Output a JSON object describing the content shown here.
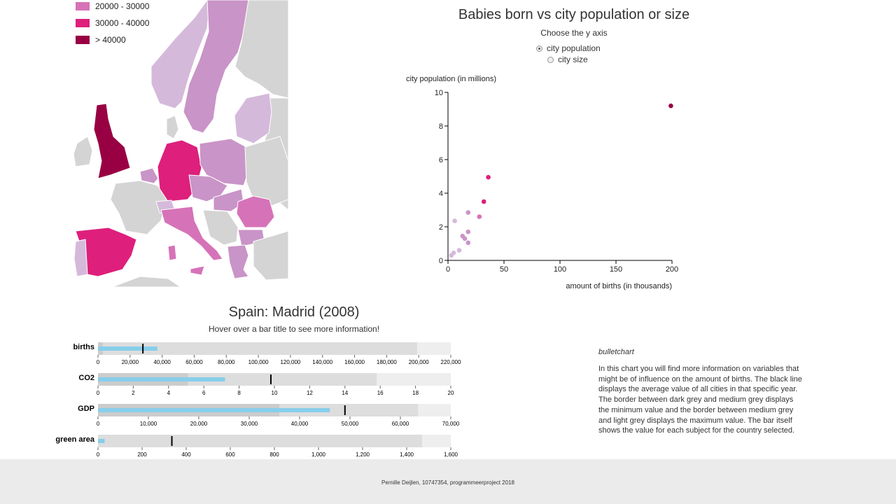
{
  "map_legend": [
    {
      "label": "20000 - 30000",
      "color": "#d672b8"
    },
    {
      "label": "30000 - 40000",
      "color": "#de1f7c"
    },
    {
      "label": "> 40000",
      "color": "#980043"
    }
  ],
  "map_colors": {
    "none": "#d4d4d4",
    "light": "#d5b9db",
    "lightmid": "#c994c7",
    "mid": "#d672b8",
    "high": "#de1f7c",
    "top": "#980043"
  },
  "scatter": {
    "title": "Babies born vs city population or size",
    "subtitle": "Choose the y axis",
    "options": [
      {
        "label": "city population",
        "selected": true
      },
      {
        "label": "city size",
        "selected": false
      }
    ]
  },
  "chart_data": [
    {
      "type": "scatter",
      "title": "Babies born vs city population or size",
      "xlabel": "amount of births (in thousands)",
      "ylabel": "city population (in millions)",
      "xlim": [
        0,
        200
      ],
      "ylim": [
        0,
        10
      ],
      "xticks": [
        "0",
        "50",
        "100",
        "150",
        "200"
      ],
      "yticks": [
        "0",
        "2",
        "4",
        "6",
        "8",
        "10"
      ],
      "points": [
        {
          "x": 199,
          "y": 9.2,
          "color": "#980043"
        },
        {
          "x": 36,
          "y": 4.95,
          "color": "#de1f7c"
        },
        {
          "x": 32,
          "y": 3.5,
          "color": "#de1f7c"
        },
        {
          "x": 28,
          "y": 2.6,
          "color": "#d672b8"
        },
        {
          "x": 18,
          "y": 2.85,
          "color": "#c994c7"
        },
        {
          "x": 6,
          "y": 2.35,
          "color": "#d5b9db"
        },
        {
          "x": 18,
          "y": 1.7,
          "color": "#c994c7"
        },
        {
          "x": 13,
          "y": 1.45,
          "color": "#c994c7"
        },
        {
          "x": 15,
          "y": 1.3,
          "color": "#c994c7"
        },
        {
          "x": 18,
          "y": 1.05,
          "color": "#c994c7"
        },
        {
          "x": 10,
          "y": 0.6,
          "color": "#d5b9db"
        },
        {
          "x": 5,
          "y": 0.45,
          "color": "#d5b9db"
        },
        {
          "x": 3,
          "y": 0.3,
          "color": "#d5b9db"
        }
      ]
    },
    {
      "type": "bullet",
      "title": "Spain: Madrid (2008)",
      "subtitle": "Hover over a bar title to see more information!",
      "rows": [
        {
          "label": "births",
          "max_scale": 220000,
          "ticks": [
            "0",
            "20,000",
            "40,000",
            "60,000",
            "80,000",
            "100,000",
            "120,000",
            "140,000",
            "160,000",
            "180,000",
            "200,000",
            "220,000"
          ],
          "range_min": 3000,
          "range_max": 199000,
          "value": 37000,
          "marker": 28000
        },
        {
          "label": "CO2",
          "max_scale": 20,
          "ticks": [
            "0",
            "2",
            "4",
            "6",
            "8",
            "10",
            "12",
            "14",
            "16",
            "18",
            "20"
          ],
          "range_min": 5.1,
          "range_max": 15.8,
          "value": 7.2,
          "marker": 9.8
        },
        {
          "label": "GDP",
          "max_scale": 70000,
          "ticks": [
            "0",
            "10,000",
            "20,000",
            "30,000",
            "40,000",
            "50,000",
            "60,000",
            "70,000"
          ],
          "range_min": 36000,
          "range_max": 63500,
          "value": 46000,
          "marker": 49000
        },
        {
          "label": "green area",
          "max_scale": 1600,
          "ticks": [
            "0",
            "200",
            "400",
            "600",
            "800",
            "1,000",
            "1,200",
            "1,400",
            "1,600"
          ],
          "range_min": 0,
          "range_max": 1470,
          "value": 30,
          "marker": 335
        }
      ]
    }
  ],
  "description": {
    "title": "bulletchart",
    "text": "In this chart you will find more information on variables that might be of influence on the amount of births. The black line displays the average value of all cities in that specific year. The border between dark grey and medium grey displays the minimum value and the border between medium grey and light grey displays the maximum value. The bar itself shows the value for each subject for the country selected."
  },
  "footer": "Pernille Deijlen, 10747354, programmeerproject 2018"
}
